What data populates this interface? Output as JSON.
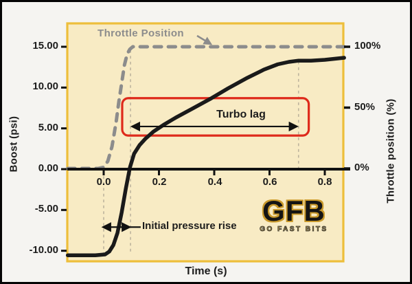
{
  "colors": {
    "plot_bg": "#f8ebc4",
    "plot_border": "#edbe3b",
    "boost_line": "#1a1a1a",
    "throttle_line": "#8c8c8c",
    "guideline": "#bdb49d",
    "callout_red": "#de2a1b",
    "axis": "#111111",
    "text": "#1c1c1c"
  },
  "chart_data": {
    "type": "line",
    "title": "",
    "xlabel": "Time (s)",
    "ylabel_left": "Boost (psi)",
    "ylabel_right": "Throttle position (%)",
    "xlim": [
      -0.13,
      0.87
    ],
    "ylim_left": [
      -11.3,
      15.5
    ],
    "ylim_right": [
      0,
      100
    ],
    "grid": false,
    "x_ticks": [
      "0.0",
      "0.2",
      "0.4",
      "0.6",
      "0.8"
    ],
    "y_ticks_left": [
      "15.00",
      "10.00",
      "5.00",
      "0.00",
      "-5.00",
      "-10.00"
    ],
    "y_ticks_right": [
      "100%",
      "50%",
      "0%"
    ],
    "series": [
      {
        "name": "Boost",
        "style": "solid",
        "axis": "left",
        "x": [
          -0.13,
          -0.03,
          0.005,
          0.02,
          0.035,
          0.05,
          0.065,
          0.08,
          0.095,
          0.11,
          0.13,
          0.15,
          0.18,
          0.22,
          0.26,
          0.32,
          0.39,
          0.45,
          0.52,
          0.58,
          0.63,
          0.67,
          0.705,
          0.75,
          0.8,
          0.87
        ],
        "y": [
          -10.55,
          -10.55,
          -10.45,
          -10.1,
          -9.3,
          -7.8,
          -5.3,
          -2.4,
          0.2,
          1.9,
          2.95,
          3.7,
          4.6,
          5.5,
          6.3,
          7.4,
          8.7,
          9.9,
          11.2,
          12.2,
          12.85,
          13.15,
          13.3,
          13.3,
          13.4,
          13.65
        ]
      },
      {
        "name": "Throttle Position",
        "style": "dashed",
        "axis": "right",
        "x": [
          -0.13,
          -0.02,
          0.0,
          0.015,
          0.03,
          0.045,
          0.055,
          0.065,
          0.075,
          0.085,
          0.095,
          0.105,
          0.12,
          0.87
        ],
        "y": [
          0,
          0,
          1,
          6,
          18,
          38,
          55,
          70,
          85,
          94,
          98,
          100,
          100,
          100
        ]
      }
    ],
    "annotations": {
      "throttle_series_label": "Throttle Position",
      "turbo_lag": {
        "label": "Turbo lag",
        "t_start": 0.102,
        "t_end": 0.7,
        "arrow_psi": 5.23,
        "box": {
          "t1": 0.067,
          "t2": 0.742,
          "psi_top": 8.7,
          "psi_bottom": 4.12
        }
      },
      "initial_pressure_rise": {
        "label": "Initial pressure rise",
        "t_start": -0.003,
        "t_end": 0.095,
        "arrow_psi": -7.1,
        "leader_t_end": 0.134
      },
      "guidelines": [
        {
          "t": 0.0,
          "psi_from": -0.15,
          "psi_to": -10.4
        },
        {
          "t": 0.097,
          "psi_from": 14.6,
          "psi_to": -10.4
        },
        {
          "t": 0.705,
          "psi_from": 13.2,
          "psi_to": 0.05
        }
      ]
    }
  },
  "logo": {
    "main": "GFB",
    "sub": "GO FAST BITS"
  }
}
